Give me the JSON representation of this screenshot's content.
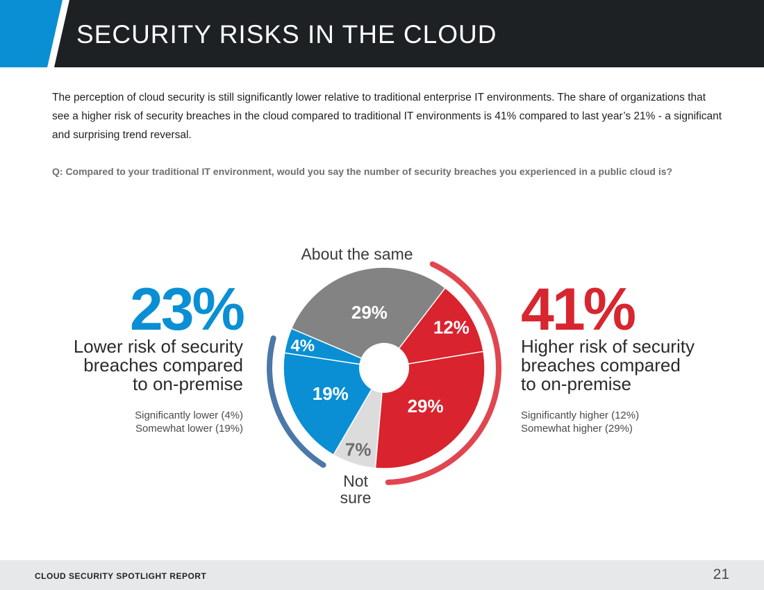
{
  "header": {
    "title": "SECURITY RISKS IN THE CLOUD"
  },
  "intro": "The perception of cloud security is still significantly lower relative to traditional enterprise IT environments. The share of organizations that see a higher risk of security breaches in the cloud compared to traditional IT environments is 41% compared to last year’s 21% - a significant and surprising trend reversal.",
  "question": "Q: Compared to your traditional IT environment, would you say the number of security breaches you experienced in a public cloud is?",
  "lower": {
    "percent": "23%",
    "desc_lines": [
      "Lower risk of security",
      "breaches compared",
      "to on-premise"
    ],
    "detail_lines": [
      "Significantly lower (4%)",
      "Somewhat lower (19%)"
    ]
  },
  "higher": {
    "percent": "41%",
    "desc_lines": [
      "Higher risk of security",
      "breaches compared",
      "to on-premise"
    ],
    "detail_lines": [
      "Significantly higher (12%)",
      "Somewhat higher (29%)"
    ]
  },
  "chart_data": {
    "type": "pie",
    "title": "",
    "slices": [
      {
        "label": "About the same",
        "value": 29,
        "display": "29%",
        "color": "#838383",
        "text_color": "#ffffff"
      },
      {
        "label": "Significantly higher",
        "value": 12,
        "display": "12%",
        "color": "#d9232e",
        "text_color": "#ffffff"
      },
      {
        "label": "Somewhat higher",
        "value": 29,
        "display": "29%",
        "color": "#d9232e",
        "text_color": "#ffffff"
      },
      {
        "label": "Not sure",
        "value": 7,
        "display": "7%",
        "color": "#dcdcdc",
        "text_color": "#6d6d6d"
      },
      {
        "label": "Somewhat lower",
        "value": 19,
        "display": "19%",
        "color": "#0a8fd4",
        "text_color": "#ffffff"
      },
      {
        "label": "Significantly lower",
        "value": 4,
        "display": "4%",
        "color": "#0a8fd4",
        "text_color": "#ffffff"
      }
    ],
    "outer_labels": {
      "top": "About the same",
      "bottom_lines": [
        "Not",
        "sure"
      ]
    },
    "arc_colors": {
      "higher": "#e0464f",
      "lower": "#4a78a8"
    }
  },
  "colors": {
    "header_bg": "#1e2124",
    "header_accent": "#0a8fd4",
    "footer_bg": "#e7e8ea"
  },
  "footer": {
    "label": "CLOUD SECURITY SPOTLIGHT REPORT",
    "page": "21"
  }
}
